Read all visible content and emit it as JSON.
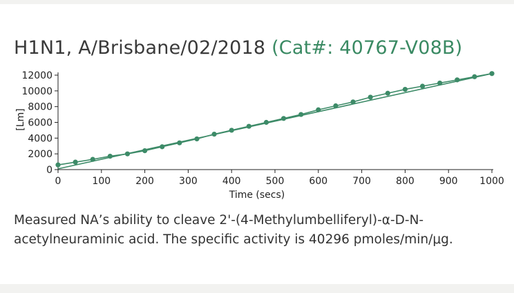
{
  "header": {
    "title": "H1N1, A/Brisbane/02/2018",
    "catalog": "(Cat#: 40767-V08B)"
  },
  "description": "Measured NA’s ability to cleave 2'-(4-Methylumbelliferyl)-α-D-N-acetylneuraminic acid. The specific activity is 40296 pmoles/min/μg.",
  "colors": {
    "accent": "#3a8a63",
    "series": "#3d8b68"
  },
  "chart_data": {
    "type": "scatter",
    "xlabel": "Time (secs)",
    "ylabel": "[Lm]",
    "xlim": [
      0,
      1000
    ],
    "ylim": [
      0,
      12000
    ],
    "xticks": [
      0,
      100,
      200,
      300,
      400,
      500,
      600,
      700,
      800,
      900,
      1000
    ],
    "yticks": [
      0,
      2000,
      4000,
      6000,
      8000,
      10000,
      12000
    ],
    "grid": false,
    "legend": "none",
    "series": [
      {
        "x": [
          0,
          40,
          80,
          120,
          160,
          200,
          240,
          280,
          320,
          360,
          400,
          440,
          480,
          520,
          560,
          600,
          640,
          680,
          720,
          760,
          800,
          840,
          880,
          920,
          960,
          1000
        ],
        "y": [
          600,
          950,
          1300,
          1700,
          2000,
          2400,
          2900,
          3400,
          3900,
          4500,
          5000,
          5500,
          6000,
          6500,
          7000,
          7600,
          8100,
          8600,
          9200,
          9700,
          10200,
          10600,
          11000,
          11400,
          11800,
          12200
        ]
      }
    ],
    "fit_line": {
      "x": [
        0,
        1000
      ],
      "y": [
        100,
        12200
      ]
    }
  }
}
